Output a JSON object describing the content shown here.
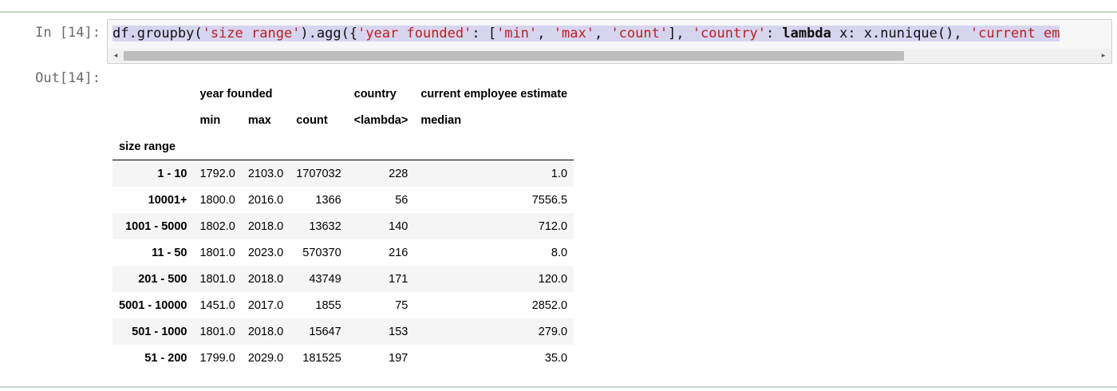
{
  "input_prompt": "In [14]:",
  "output_prompt": "Out[14]:",
  "code": {
    "p1": "df.groupby(",
    "s1": "'size range'",
    "p2": ").agg({",
    "s2": "'year founded'",
    "p3": ": [",
    "s3": "'min'",
    "p4": ", ",
    "s4": "'max'",
    "p5": ", ",
    "s5": "'count'",
    "p6": "], ",
    "s6": "'country'",
    "p7": ": ",
    "kw": "lambda",
    "p8": " x: x.nunique(), ",
    "s7": "'current em"
  },
  "table": {
    "group_headers": {
      "year_founded": "year founded",
      "country": "country",
      "employee": "current employee estimate"
    },
    "sub_headers": [
      "min",
      "max",
      "count",
      "<lambda>",
      "median"
    ],
    "index_name": "size range",
    "rows": [
      {
        "label": "1 - 10",
        "min": "1792.0",
        "max": "2103.0",
        "count": "1707032",
        "country": "228",
        "median": "1.0"
      },
      {
        "label": "10001+",
        "min": "1800.0",
        "max": "2016.0",
        "count": "1366",
        "country": "56",
        "median": "7556.5"
      },
      {
        "label": "1001 - 5000",
        "min": "1802.0",
        "max": "2018.0",
        "count": "13632",
        "country": "140",
        "median": "712.0"
      },
      {
        "label": "11 - 50",
        "min": "1801.0",
        "max": "2023.0",
        "count": "570370",
        "country": "216",
        "median": "8.0"
      },
      {
        "label": "201 - 500",
        "min": "1801.0",
        "max": "2018.0",
        "count": "43749",
        "country": "171",
        "median": "120.0"
      },
      {
        "label": "5001 - 10000",
        "min": "1451.0",
        "max": "2017.0",
        "count": "1855",
        "country": "75",
        "median": "2852.0"
      },
      {
        "label": "501 - 1000",
        "min": "1801.0",
        "max": "2018.0",
        "count": "15647",
        "country": "153",
        "median": "279.0"
      },
      {
        "label": "51 - 200",
        "min": "1799.0",
        "max": "2029.0",
        "count": "181525",
        "country": "197",
        "median": "35.0"
      }
    ]
  },
  "scrollbar": {
    "left_arrow": "◂",
    "right_arrow": "▸"
  }
}
